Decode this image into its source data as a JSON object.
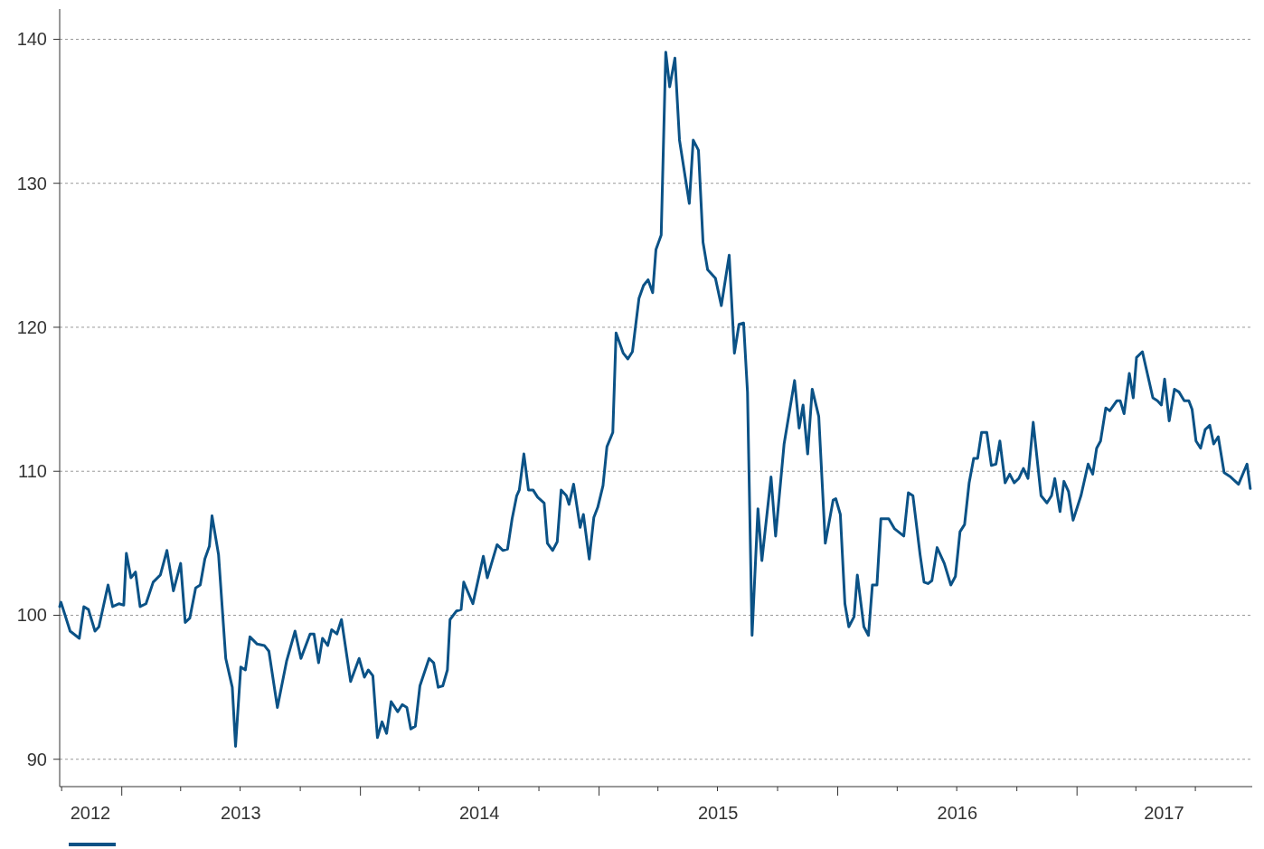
{
  "chart_data": {
    "type": "line",
    "xlim": [
      "2012-09-28",
      "2017-09-26"
    ],
    "ylim": [
      88.1,
      142.1
    ],
    "yticks": [
      90,
      100,
      110,
      120,
      130,
      140
    ],
    "grid": "y",
    "line_style": "solid",
    "marker": "none",
    "xticks": [
      {
        "value": "2012-10-01",
        "label": null
      },
      {
        "value": "2012-11-14",
        "label": "2012"
      },
      {
        "value": "2013-01-01",
        "label": null
      },
      {
        "value": "2013-04-01",
        "label": null
      },
      {
        "value": "2013-07-01",
        "label": null
      },
      {
        "value": "2013-07-02",
        "label": "2013"
      },
      {
        "value": "2013-10-01",
        "label": null
      },
      {
        "value": "2014-01-01",
        "label": null
      },
      {
        "value": "2014-04-01",
        "label": null
      },
      {
        "value": "2014-07-01",
        "label": null
      },
      {
        "value": "2014-07-02",
        "label": "2014"
      },
      {
        "value": "2014-10-01",
        "label": null
      },
      {
        "value": "2015-01-01",
        "label": null
      },
      {
        "value": "2015-04-01",
        "label": null
      },
      {
        "value": "2015-07-01",
        "label": null
      },
      {
        "value": "2015-07-02",
        "label": "2015"
      },
      {
        "value": "2015-10-01",
        "label": null
      },
      {
        "value": "2016-01-01",
        "label": null
      },
      {
        "value": "2016-04-01",
        "label": null
      },
      {
        "value": "2016-07-01",
        "label": null
      },
      {
        "value": "2016-07-02",
        "label": "2016"
      },
      {
        "value": "2016-10-01",
        "label": null
      },
      {
        "value": "2017-01-01",
        "label": null
      },
      {
        "value": "2017-04-01",
        "label": null
      },
      {
        "value": "2017-05-14",
        "label": "2017"
      },
      {
        "value": "2017-07-01",
        "label": null
      }
    ],
    "series": [
      {
        "color": "#0b5286",
        "x": [
          "2012-09-28",
          "2012-09-30",
          "2012-10-14",
          "2012-10-28",
          "2012-11-04",
          "2012-11-11",
          "2012-11-21",
          "2012-11-27",
          "2012-12-11",
          "2012-12-18",
          "2012-12-28",
          "2013-01-04",
          "2013-01-08",
          "2013-01-15",
          "2013-01-22",
          "2013-01-29",
          "2013-02-07",
          "2013-02-18",
          "2013-03-01",
          "2013-03-11",
          "2013-03-21",
          "2013-04-01",
          "2013-04-08",
          "2013-04-15",
          "2013-04-24",
          "2013-05-01",
          "2013-05-08",
          "2013-05-15",
          "2013-05-19",
          "2013-05-29",
          "2013-06-09",
          "2013-06-19",
          "2013-06-24",
          "2013-07-02",
          "2013-07-09",
          "2013-07-16",
          "2013-07-27",
          "2013-08-07",
          "2013-08-14",
          "2013-08-27",
          "2013-09-10",
          "2013-09-23",
          "2013-10-02",
          "2013-10-16",
          "2013-10-22",
          "2013-10-29",
          "2013-11-04",
          "2013-11-12",
          "2013-11-18",
          "2013-11-26",
          "2013-12-03",
          "2013-12-17",
          "2013-12-30",
          "2014-01-07",
          "2014-01-13",
          "2014-01-20",
          "2014-01-27",
          "2014-02-03",
          "2014-02-10",
          "2014-02-17",
          "2014-02-27",
          "2014-03-06",
          "2014-03-13",
          "2014-03-19",
          "2014-03-26",
          "2014-04-02",
          "2014-04-16",
          "2014-04-23",
          "2014-04-30",
          "2014-05-07",
          "2014-05-14",
          "2014-05-18",
          "2014-05-28",
          "2014-06-04",
          "2014-06-08",
          "2014-06-22",
          "2014-07-08",
          "2014-07-14",
          "2014-07-29",
          "2014-08-07",
          "2014-08-14",
          "2014-08-21",
          "2014-08-28",
          "2014-09-01",
          "2014-09-08",
          "2014-09-15",
          "2014-09-22",
          "2014-09-29",
          "2014-10-09",
          "2014-10-14",
          "2014-10-22",
          "2014-10-29",
          "2014-11-04",
          "2014-11-12",
          "2014-11-16",
          "2014-11-23",
          "2014-12-03",
          "2014-12-08",
          "2014-12-17",
          "2014-12-24",
          "2014-12-30",
          "2015-01-07",
          "2015-01-13",
          "2015-01-22",
          "2015-01-27",
          "2015-02-07",
          "2015-02-14",
          "2015-02-21",
          "2015-03-03",
          "2015-03-10",
          "2015-03-17",
          "2015-03-24",
          "2015-03-29",
          "2015-04-06",
          "2015-04-13",
          "2015-04-19",
          "2015-04-27",
          "2015-05-04",
          "2015-05-19",
          "2015-05-25",
          "2015-06-02",
          "2015-06-09",
          "2015-06-16",
          "2015-06-28",
          "2015-07-07",
          "2015-07-19",
          "2015-07-27",
          "2015-08-03",
          "2015-08-10",
          "2015-08-16",
          "2015-08-23",
          "2015-09-01",
          "2015-09-07",
          "2015-09-21",
          "2015-09-28",
          "2015-10-11",
          "2015-10-27",
          "2015-11-03",
          "2015-11-09",
          "2015-11-16",
          "2015-11-23",
          "2015-12-03",
          "2015-12-13",
          "2015-12-25",
          "2015-12-29",
          "2016-01-05",
          "2016-01-12",
          "2016-01-18",
          "2016-01-26",
          "2016-01-31",
          "2016-02-10",
          "2016-02-17",
          "2016-02-23",
          "2016-03-01",
          "2016-03-07",
          "2016-03-19",
          "2016-03-28",
          "2016-04-11",
          "2016-04-18",
          "2016-04-25",
          "2016-05-06",
          "2016-05-12",
          "2016-05-18",
          "2016-05-24",
          "2016-06-01",
          "2016-06-12",
          "2016-06-22",
          "2016-06-29",
          "2016-07-06",
          "2016-07-13",
          "2016-07-20",
          "2016-07-27",
          "2016-08-02",
          "2016-08-08",
          "2016-08-16",
          "2016-08-23",
          "2016-08-30",
          "2016-09-05",
          "2016-09-13",
          "2016-09-20",
          "2016-09-27",
          "2016-10-04",
          "2016-10-11",
          "2016-10-18",
          "2016-10-26",
          "2016-11-07",
          "2016-11-16",
          "2016-11-23",
          "2016-11-28",
          "2016-12-06",
          "2016-12-12",
          "2016-12-19",
          "2016-12-26",
          "2017-01-07",
          "2017-01-18",
          "2017-01-25",
          "2017-01-31",
          "2017-02-06",
          "2017-02-14",
          "2017-02-20",
          "2017-03-03",
          "2017-03-08",
          "2017-03-14",
          "2017-03-22",
          "2017-03-28",
          "2017-04-02",
          "2017-04-11",
          "2017-04-27",
          "2017-05-04",
          "2017-05-10",
          "2017-05-15",
          "2017-05-22",
          "2017-05-30",
          "2017-06-06",
          "2017-06-14",
          "2017-06-21",
          "2017-06-26",
          "2017-07-02",
          "2017-07-09",
          "2017-07-16",
          "2017-07-23",
          "2017-07-29",
          "2017-08-05",
          "2017-08-14",
          "2017-08-24",
          "2017-09-05",
          "2017-09-18",
          "2017-09-23"
        ],
        "values": [
          100.6,
          100.9,
          98.9,
          98.4,
          100.6,
          100.4,
          98.9,
          99.2,
          102.1,
          100.6,
          100.8,
          100.7,
          104.3,
          102.6,
          103.0,
          100.6,
          100.8,
          102.3,
          102.8,
          104.5,
          101.7,
          103.6,
          99.5,
          99.8,
          101.9,
          102.1,
          103.9,
          104.8,
          106.9,
          104.2,
          97.0,
          95.0,
          90.9,
          96.4,
          96.2,
          98.5,
          98.0,
          97.9,
          97.5,
          93.6,
          96.8,
          98.9,
          97.0,
          98.7,
          98.7,
          96.7,
          98.4,
          97.9,
          99.0,
          98.7,
          99.7,
          95.4,
          97.0,
          95.7,
          96.2,
          95.8,
          91.5,
          92.6,
          91.8,
          94.0,
          93.3,
          93.8,
          93.6,
          92.1,
          92.3,
          95.1,
          97.0,
          96.7,
          95.0,
          95.1,
          96.2,
          99.7,
          100.3,
          100.4,
          102.3,
          100.8,
          104.1,
          102.6,
          104.9,
          104.5,
          104.6,
          106.7,
          108.3,
          108.7,
          111.2,
          108.7,
          108.7,
          108.2,
          107.8,
          105.0,
          104.5,
          105.1,
          108.7,
          108.3,
          107.7,
          109.1,
          106.1,
          107.0,
          103.9,
          106.8,
          107.5,
          109.0,
          111.7,
          112.7,
          119.6,
          118.2,
          117.8,
          118.3,
          122.0,
          122.9,
          123.3,
          122.4,
          125.4,
          126.4,
          139.1,
          136.7,
          138.7,
          133.0,
          128.6,
          133.0,
          132.3,
          125.9,
          124.0,
          123.4,
          121.5,
          125.0,
          118.2,
          120.2,
          120.3,
          115.5,
          98.6,
          107.4,
          103.8,
          109.6,
          105.5,
          111.9,
          116.3,
          113.0,
          114.6,
          111.2,
          115.7,
          113.8,
          105.0,
          108.0,
          108.1,
          107.0,
          100.8,
          99.2,
          99.9,
          102.8,
          99.2,
          98.6,
          102.1,
          102.1,
          106.7,
          106.7,
          106.0,
          105.5,
          108.5,
          108.3,
          104.2,
          102.3,
          102.2,
          102.4,
          104.7,
          103.6,
          102.1,
          102.7,
          105.8,
          106.3,
          109.2,
          110.9,
          110.9,
          112.7,
          112.7,
          110.4,
          110.5,
          112.1,
          109.2,
          109.8,
          109.2,
          109.5,
          110.2,
          109.5,
          113.4,
          108.3,
          107.8,
          108.3,
          109.5,
          107.2,
          109.3,
          108.6,
          106.6,
          108.3,
          110.5,
          109.8,
          111.6,
          112.1,
          114.4,
          114.2,
          114.9,
          114.9,
          114.0,
          116.8,
          115.1,
          117.9,
          118.3,
          115.1,
          114.9,
          114.6,
          116.4,
          113.5,
          115.7,
          115.5,
          114.9,
          114.9,
          114.3,
          112.1,
          111.6,
          112.9,
          113.2,
          111.9,
          112.4,
          109.9,
          109.6,
          109.1,
          110.5,
          108.8
        ]
      }
    ]
  }
}
